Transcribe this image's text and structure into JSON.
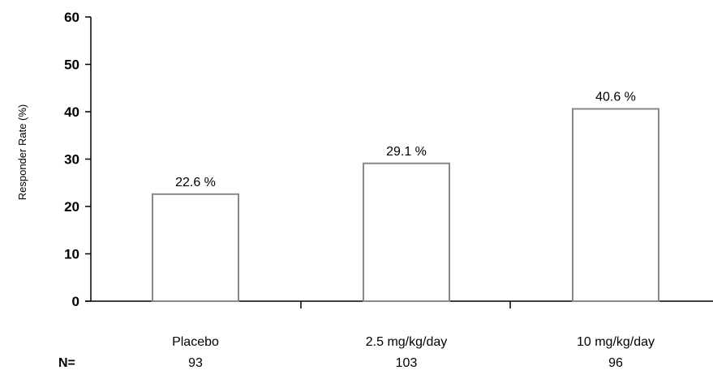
{
  "chart_data": {
    "type": "bar",
    "categories": [
      "Placebo",
      "2.5 mg/kg/day",
      "10 mg/kg/day"
    ],
    "values": [
      22.6,
      29.1,
      40.6
    ],
    "data_labels": [
      "22.6 %",
      "29.1 %",
      "40.6 %"
    ],
    "n_prefix": "N=",
    "n_values": [
      "93",
      "103",
      "96"
    ],
    "ylabel": "Responder Rate (%)",
    "ylim": [
      0,
      60
    ],
    "yticks": [
      0,
      10,
      20,
      30,
      40,
      50,
      60
    ],
    "grid": false,
    "bar_fill": "#ffffff",
    "bar_stroke": "#888888",
    "axis_color": "#000000"
  }
}
